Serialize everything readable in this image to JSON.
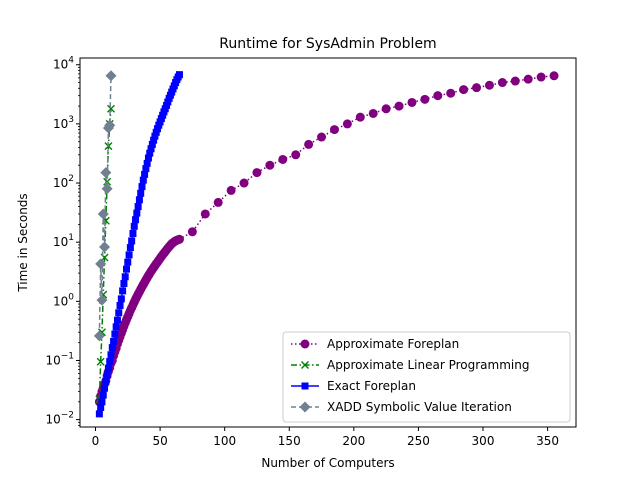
{
  "chart_data": {
    "type": "line",
    "title": "Runtime for SysAdmin Problem",
    "xlabel": "Number of Computers",
    "ylabel": "Time in Seconds",
    "xlim": [
      -12,
      372
    ],
    "xticks": [
      0,
      50,
      100,
      150,
      200,
      250,
      300,
      350
    ],
    "ylog": true,
    "ylim": [
      0.0075,
      13000
    ],
    "yticks": [
      {
        "value": 0.01,
        "base": "10",
        "exp": "−2"
      },
      {
        "value": 0.1,
        "base": "10",
        "exp": "−1"
      },
      {
        "value": 1,
        "base": "10",
        "exp": "0"
      },
      {
        "value": 10,
        "base": "10",
        "exp": "1"
      },
      {
        "value": 100,
        "base": "10",
        "exp": "2"
      },
      {
        "value": 1000,
        "base": "10",
        "exp": "3"
      },
      {
        "value": 10000,
        "base": "10",
        "exp": "4"
      }
    ],
    "grid": false,
    "legend_position": "lower-right",
    "series": [
      {
        "name": "Approximate Foreplan",
        "color": "#800080",
        "marker": "circle",
        "linestyle": "dotted",
        "x": [
          3,
          4,
          5,
          6,
          7,
          8,
          9,
          10,
          11,
          12,
          13,
          14,
          15,
          16,
          17,
          18,
          19,
          20,
          21,
          22,
          23,
          24,
          25,
          26,
          27,
          28,
          29,
          30,
          31,
          32,
          33,
          34,
          35,
          36,
          37,
          38,
          39,
          40,
          41,
          42,
          43,
          44,
          45,
          46,
          47,
          48,
          49,
          50,
          51,
          52,
          53,
          54,
          55,
          56,
          57,
          58,
          59,
          60,
          61,
          62,
          63,
          64,
          65,
          75,
          85,
          95,
          105,
          115,
          125,
          135,
          145,
          155,
          165,
          175,
          185,
          195,
          205,
          215,
          225,
          235,
          245,
          255,
          265,
          275,
          285,
          295,
          305,
          315,
          325,
          335,
          345,
          355
        ],
        "y": [
          0.02,
          0.025,
          0.03,
          0.035,
          0.04,
          0.045,
          0.055,
          0.065,
          0.075,
          0.09,
          0.1,
          0.12,
          0.14,
          0.16,
          0.19,
          0.22,
          0.25,
          0.29,
          0.33,
          0.38,
          0.43,
          0.49,
          0.55,
          0.62,
          0.7,
          0.78,
          0.87,
          0.97,
          1.08,
          1.2,
          1.32,
          1.45,
          1.6,
          1.75,
          1.92,
          2.1,
          2.3,
          2.5,
          2.72,
          2.95,
          3.2,
          3.45,
          3.72,
          4.0,
          4.3,
          4.6,
          4.95,
          5.3,
          5.7,
          6.1,
          6.5,
          6.95,
          7.4,
          7.9,
          8.4,
          8.9,
          9.4,
          9.8,
          10.2,
          10.5,
          10.8,
          11.0,
          11.2,
          15,
          30,
          47,
          75,
          100,
          150,
          200,
          250,
          300,
          450,
          600,
          800,
          1000,
          1300,
          1500,
          1800,
          2000,
          2300,
          2600,
          3000,
          3300,
          3800,
          4100,
          4500,
          5000,
          5300,
          5700,
          6200,
          6500
        ]
      },
      {
        "name": "Approximate Linear Programming",
        "color": "#008000",
        "marker": "x",
        "linestyle": "dashdot",
        "x": [
          3,
          4,
          5,
          6,
          7,
          8,
          9,
          10,
          11,
          12
        ],
        "y": [
          0.022,
          0.095,
          0.3,
          1.3,
          5.5,
          23,
          105,
          420,
          1000,
          1800
        ]
      },
      {
        "name": "Exact Foreplan",
        "color": "#0000ff",
        "marker": "square",
        "linestyle": "solid",
        "x": [
          3,
          4,
          5,
          6,
          7,
          8,
          9,
          10,
          11,
          12,
          13,
          14,
          15,
          16,
          17,
          18,
          19,
          20,
          21,
          22,
          23,
          24,
          25,
          26,
          27,
          28,
          29,
          30,
          31,
          32,
          33,
          34,
          35,
          36,
          37,
          38,
          39,
          40,
          41,
          42,
          43,
          44,
          45,
          46,
          47,
          48,
          49,
          50,
          51,
          52,
          53,
          54,
          55,
          56,
          57,
          58,
          59,
          60,
          61,
          62,
          63,
          64,
          65
        ],
        "y": [
          0.0125,
          0.016,
          0.02,
          0.026,
          0.034,
          0.044,
          0.057,
          0.074,
          0.096,
          0.125,
          0.165,
          0.21,
          0.28,
          0.37,
          0.48,
          0.64,
          0.85,
          1.1,
          1.5,
          2.0,
          2.6,
          3.5,
          4.6,
          6.1,
          8.1,
          10.5,
          14,
          18.5,
          24,
          31,
          40,
          52,
          67,
          87,
          112,
          140,
          175,
          215,
          265,
          320,
          380,
          450,
          530,
          620,
          720,
          830,
          950,
          1080,
          1230,
          1400,
          1600,
          1800,
          2050,
          2350,
          2700,
          3050,
          3450,
          3900,
          4400,
          5000,
          5600,
          6200,
          6800
        ]
      },
      {
        "name": "XADD Symbolic Value Iteration",
        "color": "#708090",
        "marker": "diamond",
        "linestyle": "dashed",
        "x": [
          3,
          4,
          5,
          6,
          7,
          8,
          9,
          10,
          11,
          12
        ],
        "y": [
          0.26,
          4.3,
          1.05,
          30,
          8.3,
          150,
          80,
          850,
          950,
          6500
        ]
      }
    ]
  }
}
